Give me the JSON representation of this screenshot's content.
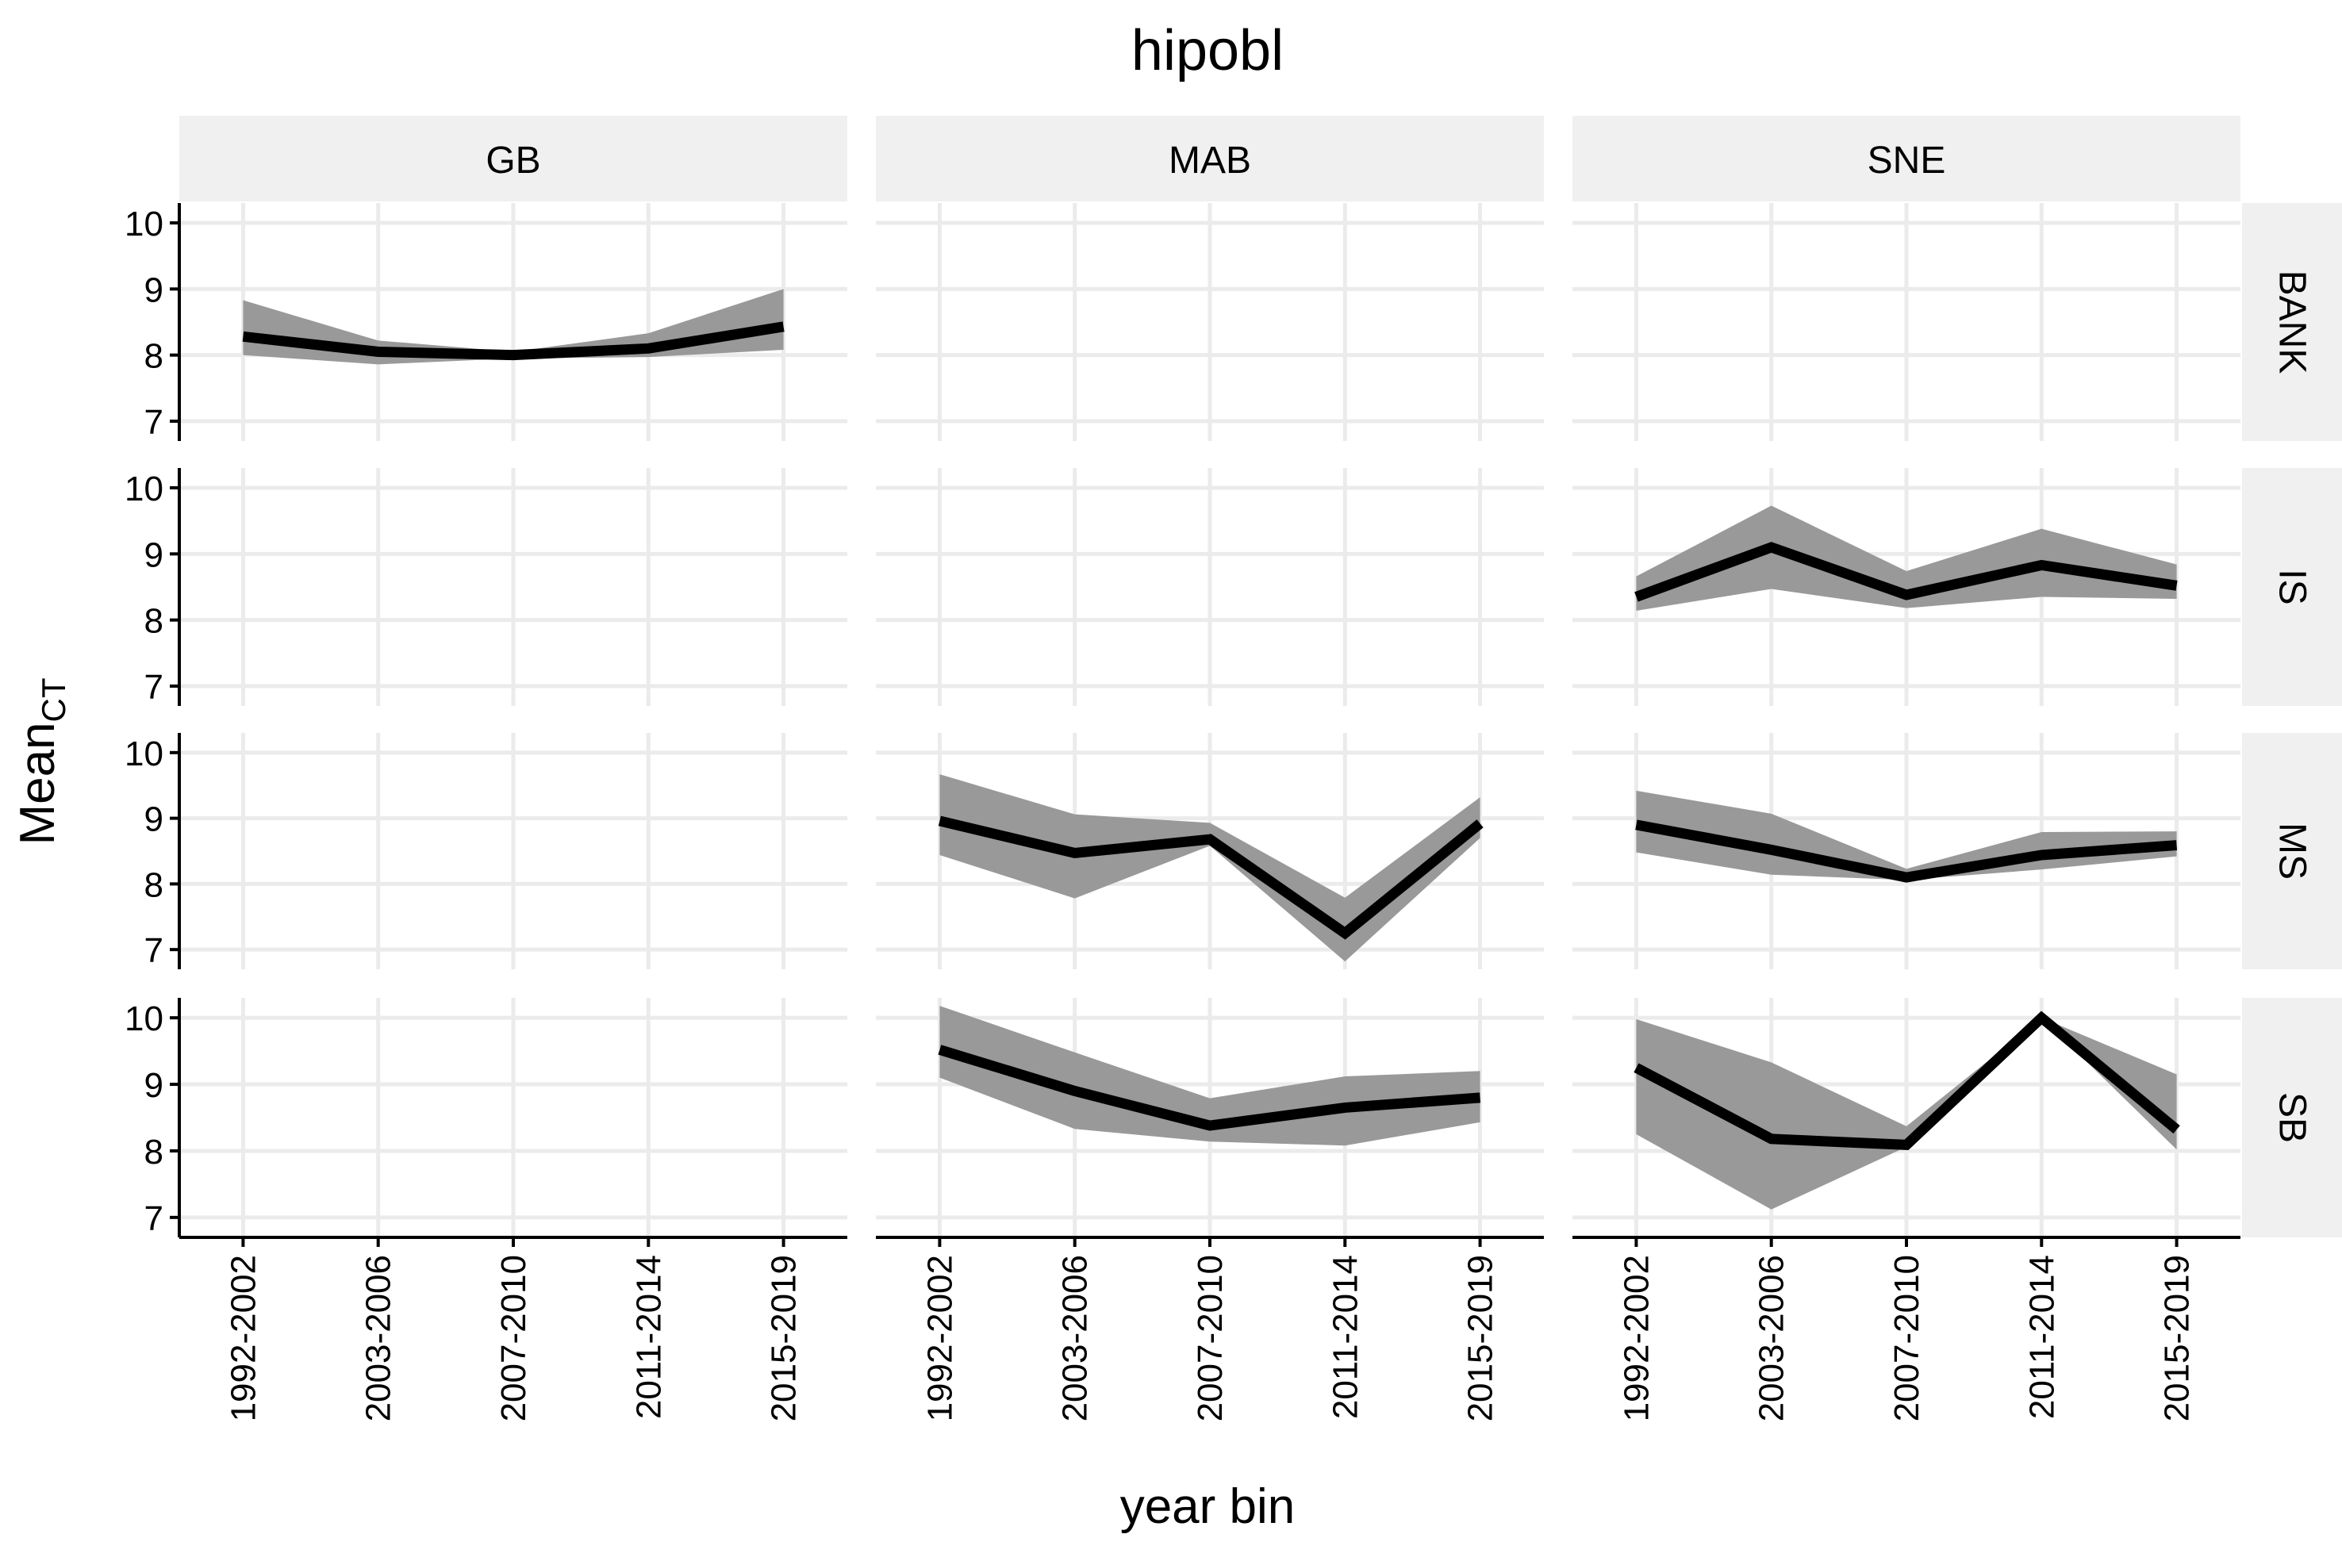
{
  "chart_data": {
    "type": "line",
    "title": "hipobl",
    "xlabel": "year bin",
    "ylabel": "Mean",
    "ylabel_subscript": "CT",
    "categories": [
      "1992-2002",
      "2003-2006",
      "2007-2010",
      "2011-2014",
      "2015-2019"
    ],
    "columns": [
      "GB",
      "MAB",
      "SNE"
    ],
    "rows": [
      "BANK",
      "IS",
      "MS",
      "SB"
    ],
    "ylim": [
      6.7,
      10.3
    ],
    "yticks": [
      7,
      8,
      9,
      10
    ],
    "grid": true,
    "colors": {
      "line": "#000000",
      "ribbon": "#999999",
      "strip": "#f0f0f0",
      "grid": "#ebebeb"
    },
    "panels": [
      {
        "column": "GB",
        "row": "BANK",
        "mean": [
          8.28,
          8.05,
          8.0,
          8.1,
          8.43
        ],
        "lower": [
          8.0,
          7.86,
          7.95,
          7.97,
          8.08
        ],
        "upper": [
          8.83,
          8.22,
          8.05,
          8.33,
          9.0
        ]
      },
      {
        "column": "MAB",
        "row": "BANK",
        "mean": [],
        "lower": [],
        "upper": []
      },
      {
        "column": "SNE",
        "row": "BANK",
        "mean": [],
        "lower": [],
        "upper": []
      },
      {
        "column": "GB",
        "row": "IS",
        "mean": [],
        "lower": [],
        "upper": []
      },
      {
        "column": "MAB",
        "row": "IS",
        "mean": [],
        "lower": [],
        "upper": []
      },
      {
        "column": "SNE",
        "row": "IS",
        "mean": [
          8.35,
          9.1,
          8.38,
          8.83,
          8.52
        ],
        "lower": [
          8.14,
          8.47,
          8.18,
          8.35,
          8.32
        ],
        "upper": [
          8.66,
          9.73,
          8.74,
          9.38,
          8.84
        ]
      },
      {
        "column": "GB",
        "row": "MS",
        "mean": [],
        "lower": [],
        "upper": []
      },
      {
        "column": "MAB",
        "row": "MS",
        "mean": [
          8.96,
          8.47,
          8.68,
          7.25,
          8.92
        ],
        "lower": [
          8.44,
          7.78,
          8.58,
          6.82,
          8.7
        ],
        "upper": [
          9.67,
          9.06,
          8.93,
          7.79,
          9.32
        ]
      },
      {
        "column": "SNE",
        "row": "MS",
        "mean": [
          8.9,
          8.52,
          8.1,
          8.44,
          8.59
        ],
        "lower": [
          8.48,
          8.14,
          8.06,
          8.22,
          8.42
        ],
        "upper": [
          9.42,
          9.07,
          8.23,
          8.79,
          8.8
        ]
      },
      {
        "column": "GB",
        "row": "SB",
        "mean": [],
        "lower": [],
        "upper": []
      },
      {
        "column": "MAB",
        "row": "SB",
        "mean": [
          9.52,
          8.9,
          8.38,
          8.65,
          8.8
        ],
        "lower": [
          9.1,
          8.33,
          8.14,
          8.08,
          8.43
        ],
        "upper": [
          10.18,
          9.48,
          8.79,
          9.12,
          9.2
        ]
      },
      {
        "column": "SNE",
        "row": "SB",
        "mean": [
          9.25,
          8.18,
          8.09,
          10.0,
          8.32
        ],
        "lower": [
          8.25,
          7.12,
          8.06,
          10.0,
          8.02
        ],
        "upper": [
          9.98,
          9.33,
          8.37,
          10.0,
          9.15
        ]
      }
    ]
  }
}
